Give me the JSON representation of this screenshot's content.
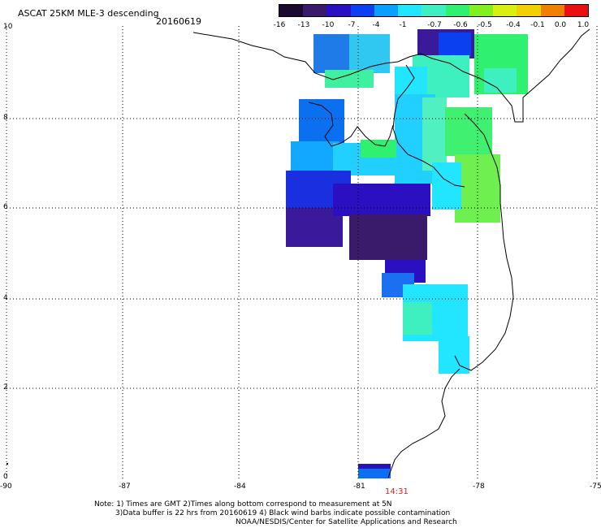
{
  "header": {
    "title": "ASCAT 25KM MLE-3 descending",
    "date": "20160619"
  },
  "colorbar": {
    "labels": [
      "-16",
      "-13",
      "-10",
      "-7",
      "-4",
      "-1",
      "-0.7",
      "-0.6",
      "-0.5",
      "-0.4",
      "-0.1",
      "0.0",
      "1.0"
    ],
    "colors": [
      "#1a0a2e",
      "#3a1a6a",
      "#2a10c0",
      "#0a40f0",
      "#0aa0ff",
      "#22e6ff",
      "#3ef0c0",
      "#30f070",
      "#80f020",
      "#d8f010",
      "#f0d000",
      "#f08000",
      "#e81010"
    ]
  },
  "axes": {
    "x_ticks": [
      "-90",
      "-87",
      "-84",
      "-81",
      "-78",
      "-75"
    ],
    "y_ticks": [
      "10",
      "8",
      "6",
      "4",
      "2",
      "0"
    ]
  },
  "time_label": "14:31",
  "notes": {
    "line1": "Note: 1) Times are GMT 2)Times along bottom correspond to measurement at 5N",
    "line2": "3)Data buffer is 22 hrs from 20160619 4) Black wind barbs indicate possible contamination",
    "line3": "NOAA/NESDIS/Center for Satellite Applications and Research"
  }
}
